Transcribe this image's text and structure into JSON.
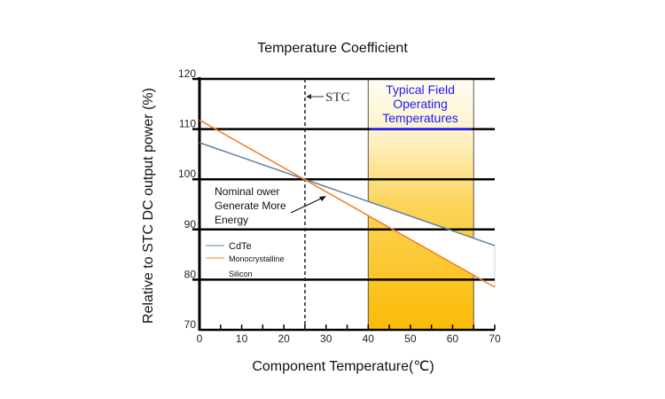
{
  "chart_data": {
    "type": "line",
    "title": "Temperature Coefficient",
    "xlabel": "Component Temperature(℃)",
    "ylabel": "Relative to STC DC output power (%)",
    "xlim": [
      0,
      70
    ],
    "ylim": [
      70,
      120
    ],
    "xticks": [
      "0",
      "10",
      "20",
      "30",
      "40",
      "50",
      "60",
      "70"
    ],
    "yticks": [
      "70",
      "80",
      "90",
      "100",
      "110",
      "120"
    ],
    "grid": "horizontal",
    "legend_position": "left",
    "series": [
      {
        "name": "CdTe",
        "color": "#5b7fa6",
        "x": [
          0,
          70
        ],
        "y": [
          107.3,
          86.8
        ]
      },
      {
        "name": "Monocrystalline Silicon",
        "color": "#f57c1f",
        "x": [
          0,
          70
        ],
        "y": [
          111.8,
          78.5
        ]
      }
    ],
    "legend": [
      "CdTe",
      "Monocrystalline",
      "Silicon"
    ],
    "annotations": {
      "stc_label": "STC",
      "stc_x": 25,
      "region_label": [
        "Typical Field",
        "Operating",
        "Temperatures"
      ],
      "region_range": [
        40,
        65
      ],
      "region_color": "#fbbf0a",
      "note": [
        "Nominal ower",
        "Generate More",
        "Energy"
      ]
    }
  }
}
